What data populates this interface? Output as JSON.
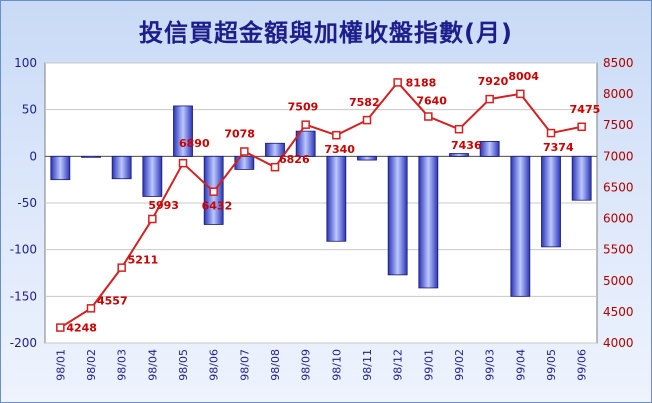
{
  "title": "投信買超金額與加權收盤指數(月)",
  "colors": {
    "bar": "#4a5fd8",
    "line": "#d42020",
    "leftAxis": "#1f1f8f",
    "rightAxis": "#b00000"
  },
  "chart_data": {
    "type": "bar",
    "title": "投信買超金額與加權收盤指數(月)",
    "categories": [
      "98/01",
      "98/02",
      "98/03",
      "98/04",
      "98/05",
      "98/06",
      "98/07",
      "98/08",
      "98/09",
      "98/10",
      "98/11",
      "98/12",
      "99/01",
      "99/02",
      "99/03",
      "99/04",
      "99/05",
      "99/06"
    ],
    "left_axis": {
      "ylim": [
        -200,
        100
      ],
      "ticks": [
        100,
        50,
        0,
        -50,
        -100,
        -150,
        -200
      ]
    },
    "right_axis": {
      "ylim": [
        4000,
        8500
      ],
      "ticks": [
        8500,
        8000,
        7500,
        7000,
        6500,
        6000,
        5500,
        5000,
        4500,
        4000
      ]
    },
    "grid": true,
    "series": [
      {
        "type": "bar",
        "axis": "left",
        "values": [
          -25,
          0,
          -24,
          -43,
          54,
          -73,
          -14,
          14,
          27,
          -91,
          -4,
          -127,
          -141,
          3,
          16,
          -150,
          -97,
          -47
        ]
      },
      {
        "type": "line",
        "axis": "right",
        "values": [
          4248,
          4557,
          5211,
          5993,
          6890,
          6432,
          7078,
          6826,
          7509,
          7340,
          7582,
          8188,
          7640,
          7436,
          7920,
          8004,
          7374,
          7475
        ],
        "labels": [
          "4248",
          "4557",
          "5211",
          "5993",
          "6890",
          "6432",
          "7078",
          "6826",
          "7509",
          "7340",
          "7582",
          "8188",
          "7640",
          "7436",
          "7920",
          "8004",
          "7374",
          "7475"
        ]
      }
    ]
  }
}
